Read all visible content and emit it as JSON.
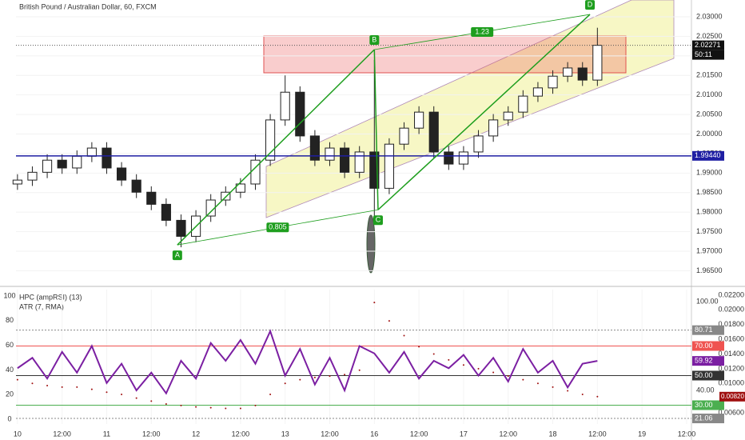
{
  "chart_data": [
    {
      "type": "candlestick",
      "title": "British Pound / Australian Dollar, 60, FXCM",
      "x": [
        0,
        4,
        8,
        12,
        16,
        20,
        24,
        28,
        32,
        36,
        40,
        44,
        48,
        52,
        56,
        60,
        64,
        68,
        72,
        76,
        80,
        84,
        88,
        92,
        96,
        100,
        104,
        108,
        112,
        116,
        120,
        124,
        128,
        132,
        136,
        140,
        144,
        148,
        152,
        156
      ],
      "open": [
        1.9872,
        1.9882,
        1.9902,
        1.9933,
        1.9913,
        1.9943,
        1.9964,
        1.9913,
        1.9882,
        1.9851,
        1.982,
        1.9779,
        1.9738,
        1.979,
        1.9831,
        1.9851,
        1.9872,
        1.9933,
        2.0036,
        2.0107,
        1.9995,
        1.9933,
        1.9964,
        1.9902,
        1.9954,
        1.9861,
        1.9974,
        2.0015,
        2.0056,
        1.9954,
        1.9923,
        1.9954,
        1.9995,
        2.0036,
        2.0056,
        2.0097,
        2.0118,
        2.0148,
        2.0169,
        2.0138
      ],
      "high": [
        1.9897,
        1.9917,
        1.9948,
        1.9948,
        1.9958,
        1.9979,
        1.9979,
        1.9928,
        1.9897,
        1.9866,
        1.9835,
        1.9794,
        1.9805,
        1.9846,
        1.9866,
        1.9887,
        1.9948,
        2.0051,
        2.015,
        2.0122,
        2.001,
        1.9979,
        1.9979,
        1.9969,
        2.019,
        1.9989,
        2.003,
        2.0071,
        2.0071,
        1.9969,
        1.9969,
        2.001,
        2.0051,
        2.0071,
        2.0112,
        2.0133,
        2.0163,
        2.0184,
        2.0184,
        2.0272
      ],
      "low": [
        1.9857,
        1.9867,
        1.9887,
        1.9898,
        1.9898,
        1.9928,
        1.9898,
        1.9867,
        1.9836,
        1.9805,
        1.9764,
        1.971,
        1.9723,
        1.9775,
        1.9816,
        1.9836,
        1.9857,
        1.9918,
        2.0021,
        1.998,
        1.9918,
        1.9918,
        1.9887,
        1.9887,
        1.979,
        1.9846,
        1.9959,
        2.0,
        1.9939,
        1.9908,
        1.9908,
        1.9939,
        1.998,
        2.0021,
        2.0041,
        2.0082,
        2.0103,
        2.0133,
        2.0123,
        2.0123
      ],
      "close": [
        1.9882,
        1.9902,
        1.9933,
        1.9913,
        1.9943,
        1.9964,
        1.9913,
        1.9882,
        1.9851,
        1.982,
        1.9779,
        1.9738,
        1.979,
        1.9831,
        1.9851,
        1.9872,
        1.9933,
        2.0036,
        2.0107,
        1.9995,
        1.9933,
        1.9964,
        1.9902,
        1.9954,
        1.9861,
        1.9974,
        2.0015,
        2.0056,
        1.9954,
        1.9923,
        1.9954,
        1.9995,
        2.0036,
        2.0056,
        2.0097,
        2.0118,
        2.0148,
        2.0169,
        2.0138,
        2.0227
      ],
      "xlim": [
        -0.4,
        181.3
      ],
      "ylim": [
        1.9616,
        2.0343
      ],
      "yticks": [
        {
          "value": 1.965,
          "label": "1.96500"
        },
        {
          "value": 1.97,
          "label": "1.97000"
        },
        {
          "value": 1.975,
          "label": "1.97500"
        },
        {
          "value": 1.98,
          "label": "1.98000"
        },
        {
          "value": 1.985,
          "label": "1.98500"
        },
        {
          "value": 1.99,
          "label": "1.99000"
        },
        {
          "value": 1.995,
          "label": "1.99500"
        },
        {
          "value": 2.0,
          "label": "2.00000"
        },
        {
          "value": 2.005,
          "label": "2.00500"
        },
        {
          "value": 2.01,
          "label": "2.01000"
        },
        {
          "value": 2.015,
          "label": "2.01500"
        },
        {
          "value": 2.02,
          "label": "2.02000"
        },
        {
          "value": 2.025,
          "label": "2.02500"
        },
        {
          "value": 2.03,
          "label": "2.03000"
        }
      ],
      "hline": {
        "value": 1.9944,
        "label": "1.99440",
        "color": "#1f1fa3"
      },
      "last_price": {
        "value": 2.02271,
        "label": "2.02271"
      },
      "countdown": "50:11",
      "pattern": {
        "color": "#1e9e1e",
        "points": [
          {
            "label": "A",
            "x": 43,
            "price": 1.9716
          },
          {
            "label": "B",
            "x": 96,
            "price": 2.0216
          },
          {
            "label": "C",
            "x": 97,
            "price": 1.9806
          },
          {
            "label": "D",
            "x": 154,
            "price": 2.0306
          }
        ],
        "ratios": [
          "0.805",
          "1.23"
        ]
      }
    },
    {
      "type": "line",
      "legend": [
        "HPC (ampRSI) (13)",
        "ATR (7, RMA)"
      ],
      "x": [
        0,
        4,
        8,
        12,
        16,
        20,
        24,
        28,
        32,
        36,
        40,
        44,
        48,
        52,
        56,
        60,
        64,
        68,
        72,
        76,
        80,
        84,
        88,
        92,
        96,
        100,
        104,
        108,
        112,
        116,
        120,
        124,
        128,
        132,
        136,
        140,
        144,
        148,
        152,
        156
      ],
      "series": [
        {
          "name": "HPC (ampRSI) (13)",
          "color": "#7b1fa2",
          "axis": "y2",
          "values": [
            55,
            62,
            48,
            66,
            52,
            70,
            45,
            58,
            40,
            52,
            38,
            60,
            48,
            72,
            60,
            74,
            58,
            80,
            50,
            68,
            44,
            62,
            40,
            70,
            65,
            52,
            66,
            48,
            60,
            55,
            64,
            50,
            62,
            46,
            68,
            52,
            60,
            42,
            58,
            59.92
          ]
        },
        {
          "name": "ATR (7, RMA)",
          "color": "#a01010",
          "axis": "y3",
          "style": "dotted",
          "last_label": "0.00820",
          "values": [
            0.0105,
            0.01,
            0.0097,
            0.0095,
            0.0095,
            0.0092,
            0.0088,
            0.0085,
            0.008,
            0.0076,
            0.0072,
            0.007,
            0.0068,
            0.0067,
            0.0066,
            0.0066,
            0.007,
            0.0085,
            0.01,
            0.0105,
            0.0108,
            0.011,
            0.0112,
            0.0118,
            0.021,
            0.0185,
            0.0165,
            0.015,
            0.014,
            0.0132,
            0.0125,
            0.012,
            0.0115,
            0.011,
            0.0105,
            0.01,
            0.0095,
            0.009,
            0.0085,
            0.0082
          ]
        }
      ],
      "xlim": [
        -0.4,
        181.3
      ],
      "xticks": [
        {
          "value": 0,
          "label": "10"
        },
        {
          "value": 12,
          "label": "12:00"
        },
        {
          "value": 24,
          "label": "11"
        },
        {
          "value": 36,
          "label": "12:00"
        },
        {
          "value": 48,
          "label": "12"
        },
        {
          "value": 60,
          "label": "12:00"
        },
        {
          "value": 72,
          "label": "13"
        },
        {
          "value": 84,
          "label": "12:00"
        },
        {
          "value": 96,
          "label": "16"
        },
        {
          "value": 108,
          "label": "12:00"
        },
        {
          "value": 120,
          "label": "17"
        },
        {
          "value": 132,
          "label": "12:00"
        },
        {
          "value": 144,
          "label": "18"
        },
        {
          "value": 156,
          "label": "12:00"
        },
        {
          "value": 168,
          "label": "19"
        },
        {
          "value": 180,
          "label": "12:00"
        }
      ],
      "ylim": [
        -3.9,
        105.2
      ],
      "yticks": [
        0,
        20,
        40,
        60,
        80,
        100
      ],
      "y2lim": [
        17.3,
        108.1
      ],
      "y2ticks": [
        {
          "value": 100,
          "label": "100.00"
        },
        {
          "value": 40,
          "label": "40.00"
        }
      ],
      "y3lim": [
        0.00448,
        0.02276
      ],
      "y3ticks": [
        {
          "value": 0.006,
          "label": "0.00600"
        },
        {
          "value": 0.01,
          "label": "0.01000"
        },
        {
          "value": 0.012,
          "label": "0.01200"
        },
        {
          "value": 0.014,
          "label": "0.01400"
        },
        {
          "value": 0.016,
          "label": "0.01600"
        },
        {
          "value": 0.018,
          "label": "0.01800"
        },
        {
          "value": 0.02,
          "label": "0.02000"
        },
        {
          "value": 0.022,
          "label": "0.02200"
        }
      ],
      "levels": [
        {
          "value": 80.71,
          "label": "80.71",
          "color": "#888888"
        },
        {
          "value": 70,
          "label": "70.00",
          "color": "#ef5350"
        },
        {
          "value": 50,
          "label": "50.00",
          "color": "#333333"
        },
        {
          "value": 30,
          "label": "30.00",
          "color": "#4caf50"
        },
        {
          "value": 21.06,
          "label": "21.06",
          "color": "#888888"
        }
      ]
    }
  ]
}
